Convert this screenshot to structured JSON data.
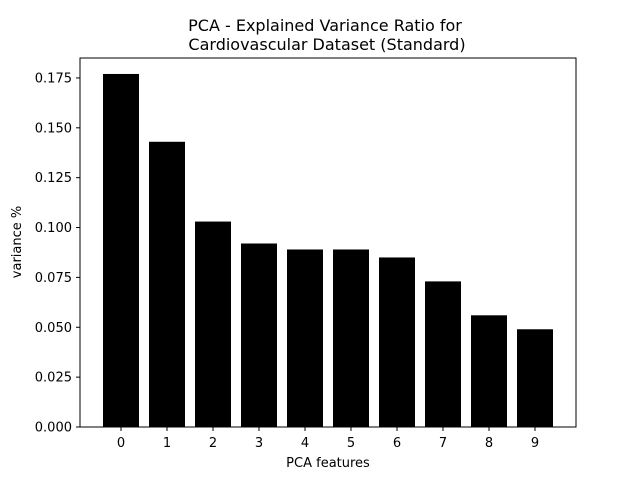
{
  "chart_data": {
    "type": "bar",
    "title": "PCA - Explained Variance Ratio for",
    "subtitle": "Cardiovascular Dataset (Standard)",
    "xlabel": "PCA features",
    "ylabel": "variance %",
    "categories": [
      "0",
      "1",
      "2",
      "3",
      "4",
      "5",
      "6",
      "7",
      "8",
      "9"
    ],
    "values": [
      0.177,
      0.143,
      0.103,
      0.092,
      0.089,
      0.089,
      0.085,
      0.073,
      0.056,
      0.049
    ],
    "ylim": [
      0,
      0.185
    ],
    "yticks": [
      "0.000",
      "0.025",
      "0.050",
      "0.075",
      "0.100",
      "0.125",
      "0.150",
      "0.175"
    ],
    "grid": false,
    "bar_color": "#000000"
  }
}
